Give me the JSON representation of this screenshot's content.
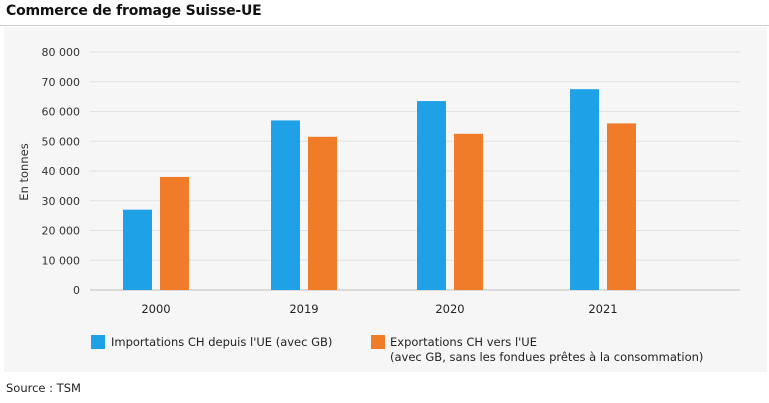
{
  "title": "Commerce de fromage Suisse-UE",
  "source": "Source : TSM",
  "legend": [
    {
      "name": "importations-legend",
      "lines": [
        "Importations CH depuis l'UE (avec GB)"
      ],
      "color": "#1ea1e6"
    },
    {
      "name": "exportations-legend",
      "lines": [
        "Exportations CH vers l'UE",
        "(avec GB, sans les fondues prêtes à la consommation)"
      ],
      "color": "#f07c2a"
    }
  ],
  "chart_data": {
    "type": "bar",
    "title": "Commerce de fromage Suisse-UE",
    "xlabel": "",
    "ylabel": "En tonnes",
    "categories": [
      "2000",
      "2019",
      "2020",
      "2021"
    ],
    "series": [
      {
        "name": "Importations CH depuis l'UE (avec GB)",
        "color": "#1ea1e6",
        "values": [
          27000,
          57000,
          63500,
          67500
        ]
      },
      {
        "name": "Exportations CH vers l'UE (avec GB, sans les fondues prêtes à la consommation)",
        "color": "#f07c2a",
        "values": [
          38000,
          51500,
          52500,
          56000
        ]
      }
    ],
    "ylim": [
      0,
      80000
    ],
    "yticks": [
      0,
      10000,
      20000,
      30000,
      40000,
      50000,
      60000,
      70000,
      80000
    ],
    "ytick_labels": [
      "0",
      "10 000",
      "20 000",
      "30 000",
      "40 000",
      "50 000",
      "60 000",
      "70 000",
      "80 000"
    ],
    "grid": true,
    "legend_position": "bottom"
  }
}
